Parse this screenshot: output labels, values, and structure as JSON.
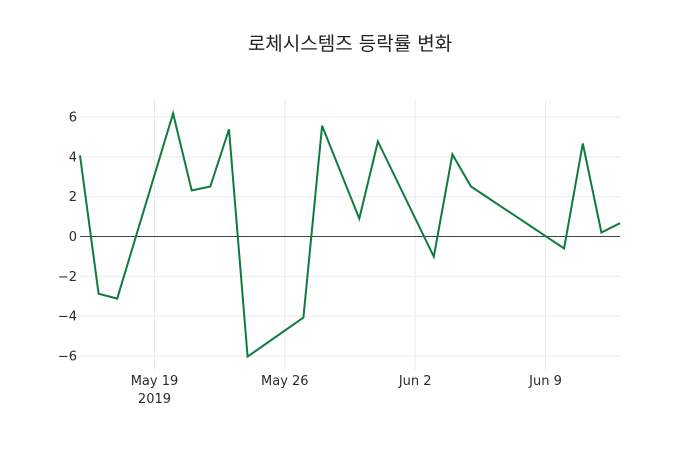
{
  "chart_data": {
    "type": "line",
    "title": "로체시스템즈 등락률 변화",
    "xlabel": "",
    "ylabel": "",
    "x": [
      "2019-05-15",
      "2019-05-16",
      "2019-05-17",
      "2019-05-20",
      "2019-05-21",
      "2019-05-22",
      "2019-05-23",
      "2019-05-24",
      "2019-05-27",
      "2019-05-28",
      "2019-05-30",
      "2019-05-31",
      "2019-06-03",
      "2019-06-04",
      "2019-06-05",
      "2019-06-10",
      "2019-06-11",
      "2019-06-12",
      "2019-06-13"
    ],
    "series": [
      {
        "name": "등락률",
        "color": "#0f7b3f",
        "values": [
          4.07,
          -2.87,
          -3.12,
          6.18,
          2.31,
          2.51,
          5.38,
          -6.03,
          -4.07,
          5.56,
          0.9,
          4.77,
          -1.01,
          4.12,
          2.51,
          -0.6,
          4.67,
          0.2,
          0.67
        ]
      }
    ],
    "x_ticks": [
      {
        "date": "2019-05-19",
        "label": "May 19",
        "sublabel": "2019"
      },
      {
        "date": "2019-05-26",
        "label": "May 26",
        "sublabel": ""
      },
      {
        "date": "2019-06-02",
        "label": "Jun 2",
        "sublabel": ""
      },
      {
        "date": "2019-06-09",
        "label": "Jun 9",
        "sublabel": ""
      }
    ],
    "y_ticks": [
      6,
      4,
      2,
      0,
      -2,
      -4,
      -6
    ],
    "y_tick_labels": [
      "6",
      "4",
      "2",
      "0",
      "−2",
      "−4",
      "−6"
    ],
    "ylim": [
      -6.6,
      6.9
    ],
    "xlim": [
      "2019-05-15",
      "2019-06-13"
    ],
    "grid": true,
    "zero_line": true,
    "legend": "none"
  }
}
